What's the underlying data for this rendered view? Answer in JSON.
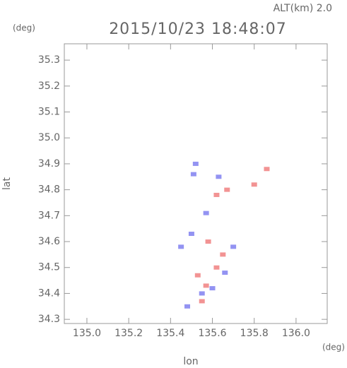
{
  "chart_data": {
    "type": "scatter",
    "title": "2015/10/23 18:48:07",
    "altitude_label": "ALT(km)  2.0",
    "y_unit": "(deg)",
    "x_unit": "(deg)",
    "xlabel": "lon",
    "ylabel": "lat",
    "xlim": [
      134.892,
      136.149
    ],
    "ylim": [
      34.284,
      35.363
    ],
    "xticks": [
      {
        "value": 135.0,
        "label": "135.0"
      },
      {
        "value": 135.2,
        "label": "135.2"
      },
      {
        "value": 135.4,
        "label": "135.4"
      },
      {
        "value": 135.6,
        "label": "135.6"
      },
      {
        "value": 135.8,
        "label": "135.8"
      },
      {
        "value": 136.0,
        "label": "136.0"
      }
    ],
    "yticks": [
      {
        "value": 34.3,
        "label": "34.3"
      },
      {
        "value": 34.4,
        "label": "34.4"
      },
      {
        "value": 34.5,
        "label": "34.5"
      },
      {
        "value": 34.6,
        "label": "34.6"
      },
      {
        "value": 34.7,
        "label": "34.7"
      },
      {
        "value": 34.8,
        "label": "34.8"
      },
      {
        "value": 34.9,
        "label": "34.9"
      },
      {
        "value": 35.0,
        "label": "35.0"
      },
      {
        "value": 35.1,
        "label": "35.1"
      },
      {
        "value": 35.2,
        "label": "35.2"
      },
      {
        "value": 35.3,
        "label": "35.3"
      }
    ],
    "series": [
      {
        "color": "#f08080",
        "x": [
          135.55,
          135.57,
          135.62,
          135.58,
          135.67,
          135.62,
          135.86,
          135.8,
          135.53,
          135.65
        ],
        "values": [
          34.37,
          34.43,
          34.5,
          34.6,
          34.8,
          34.78,
          34.88,
          34.82,
          34.47,
          34.55
        ]
      },
      {
        "color": "#8080f0",
        "x": [
          135.5,
          135.6,
          135.66,
          135.55,
          135.48,
          135.51,
          135.63,
          135.57,
          135.7,
          135.45,
          135.52
        ],
        "values": [
          34.63,
          34.42,
          34.48,
          34.4,
          34.35,
          34.86,
          34.85,
          34.71,
          34.58,
          34.58,
          34.9
        ]
      }
    ]
  }
}
